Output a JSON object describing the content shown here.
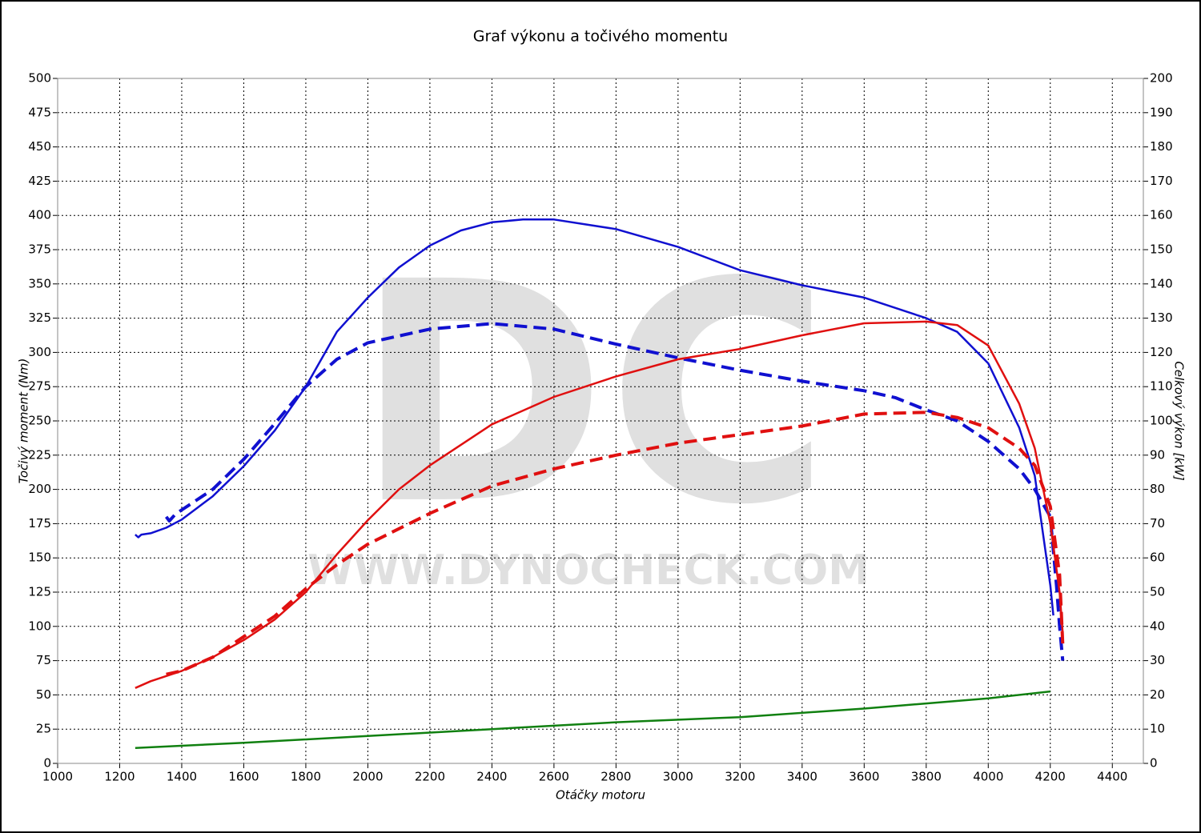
{
  "chart_data": {
    "type": "line",
    "title": "Graf výkonu a točivého momentu",
    "x_label": "Otáčky motoru",
    "y_label": "Točivý moment (Nm)",
    "y2_label": "Celkový výkon [kW]",
    "watermark": [
      "DC",
      "WWW.DYNOCHECK.COM"
    ],
    "xlim": [
      1000,
      4500
    ],
    "xticks": [
      1000,
      1200,
      1400,
      1600,
      1800,
      2000,
      2200,
      2400,
      2600,
      2800,
      3000,
      3200,
      3400,
      3600,
      3800,
      4000,
      4200,
      4400
    ],
    "ylim": [
      0,
      500
    ],
    "yticks": [
      0,
      25,
      50,
      75,
      100,
      125,
      150,
      175,
      200,
      225,
      250,
      275,
      300,
      325,
      350,
      375,
      400,
      425,
      450,
      475,
      500
    ],
    "y2lim": [
      0,
      200
    ],
    "y2ticks": [
      0,
      10,
      20,
      30,
      40,
      50,
      60,
      70,
      80,
      90,
      100,
      110,
      120,
      130,
      140,
      150,
      160,
      170,
      180,
      190,
      200
    ],
    "grid": true,
    "series": [
      {
        "color": "#1010d0",
        "dashed": false,
        "axis": "y",
        "x": [
          1250,
          1260,
          1270,
          1300,
          1350,
          1400,
          1500,
          1600,
          1700,
          1800,
          1900,
          2000,
          2100,
          2200,
          2300,
          2400,
          2500,
          2600,
          2800,
          3000,
          3200,
          3400,
          3600,
          3800,
          3900,
          4000,
          4100,
          4150,
          4200,
          4210
        ],
        "values": [
          167,
          165,
          167,
          168,
          172,
          178,
          195,
          217,
          243,
          275,
          315,
          340,
          362,
          378,
          389,
          395,
          397,
          397,
          390,
          377,
          360,
          349,
          340,
          325,
          315,
          292,
          245,
          210,
          130,
          108
        ]
      },
      {
        "color": "#1010d0",
        "dashed": true,
        "axis": "y",
        "x": [
          1350,
          1360,
          1380,
          1500,
          1600,
          1700,
          1800,
          1900,
          2000,
          2200,
          2400,
          2600,
          2800,
          3000,
          3200,
          3400,
          3600,
          3700,
          3800,
          3900,
          4000,
          4100,
          4150,
          4200,
          4220,
          4230,
          4240
        ],
        "values": [
          180,
          177,
          182,
          200,
          222,
          248,
          275,
          295,
          307,
          317,
          321,
          317,
          306,
          296,
          287,
          279,
          272,
          267,
          258,
          250,
          235,
          215,
          200,
          180,
          130,
          100,
          75
        ]
      },
      {
        "color": "#e01010",
        "dashed": false,
        "axis": "y2",
        "x": [
          1250,
          1300,
          1400,
          1500,
          1600,
          1700,
          1800,
          1900,
          2000,
          2100,
          2200,
          2400,
          2600,
          2800,
          3000,
          3200,
          3400,
          3600,
          3800,
          3900,
          4000,
          4100,
          4150,
          4200,
          4230,
          4240
        ],
        "values": [
          22,
          24,
          27,
          31,
          36,
          42,
          50,
          61,
          71,
          80,
          87,
          99,
          107,
          113,
          118,
          121,
          125,
          128.5,
          129,
          128,
          122,
          105,
          92,
          70,
          50,
          38
        ]
      },
      {
        "color": "#e01010",
        "dashed": true,
        "axis": "y2",
        "x": [
          1350,
          1400,
          1500,
          1600,
          1700,
          1800,
          1900,
          2000,
          2200,
          2400,
          2600,
          2800,
          3000,
          3200,
          3400,
          3600,
          3800,
          3900,
          4000,
          4100,
          4150,
          4200,
          4230,
          4240
        ],
        "values": [
          26,
          27,
          31,
          37,
          43,
          51,
          58,
          64,
          73,
          81,
          86,
          90,
          93.5,
          96,
          98.5,
          102,
          102.5,
          101,
          98,
          92,
          87,
          75,
          55,
          35
        ]
      },
      {
        "color": "#108010",
        "dashed": false,
        "axis": "y2",
        "x": [
          1250,
          1600,
          2000,
          2400,
          2800,
          3200,
          3600,
          3800,
          4000,
          4200
        ],
        "values": [
          4.5,
          6,
          8,
          10,
          12,
          13.5,
          16,
          17.5,
          19,
          21
        ]
      }
    ]
  }
}
